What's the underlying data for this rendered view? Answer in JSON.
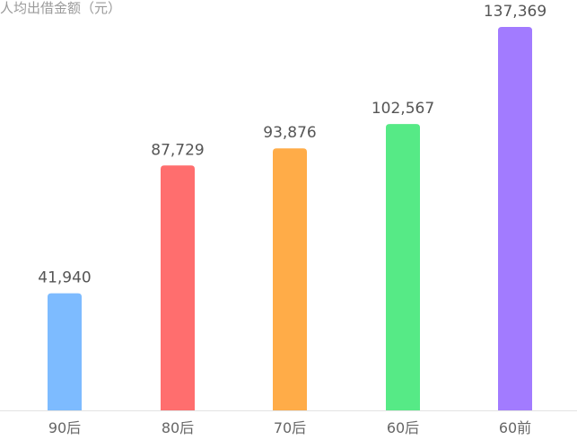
{
  "chart_data": {
    "type": "bar",
    "title": "",
    "ylabel": "人均出借金额（元）",
    "xlabel": "",
    "categories": [
      "90后",
      "80后",
      "70后",
      "60后",
      "60前"
    ],
    "values": [
      41940,
      87729,
      93876,
      102567,
      137369
    ],
    "value_labels": [
      "41,940",
      "87,729",
      "93,876",
      "102,567",
      "137,369"
    ],
    "colors": [
      "#7dbbff",
      "#ff6e6e",
      "#ffac48",
      "#56ea86",
      "#a27bff"
    ],
    "ylim": [
      0,
      137369
    ],
    "grid": false,
    "legend": "none"
  }
}
